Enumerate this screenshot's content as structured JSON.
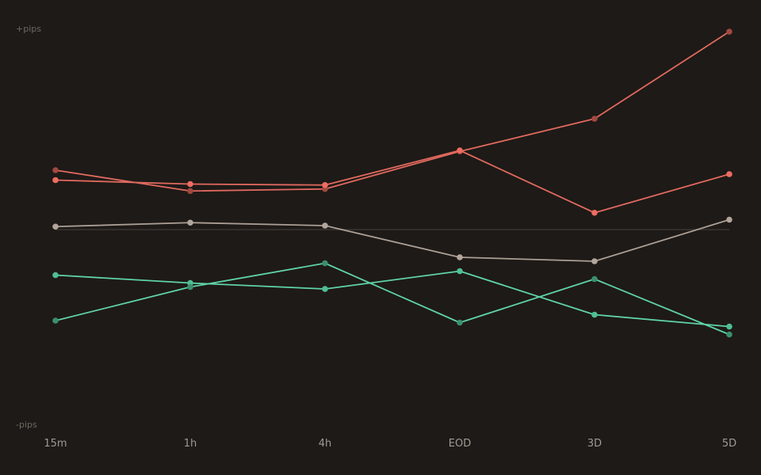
{
  "chart_data": {
    "type": "line",
    "title": "",
    "xlabel": "",
    "ylabel": "",
    "y_top_label": "+pips",
    "y_bottom_label": "-pips",
    "categories": [
      "15m",
      "1h",
      "4h",
      "EOD",
      "3D",
      "5D"
    ],
    "ylim": [
      -100,
      100
    ],
    "baseline": 0,
    "grid": false,
    "legend": "none",
    "series": [
      {
        "color": "#e0695f",
        "marker_color": "#a24840",
        "values": [
          30,
          19.5,
          20.5,
          39.5,
          56,
          100
        ]
      },
      {
        "color": "#e0695f",
        "marker_color": "#ee6c62",
        "values": [
          25,
          23,
          22.5,
          40,
          8.5,
          28
        ]
      },
      {
        "color": "#ab9f95",
        "marker_color": "#b2a69c",
        "values": [
          1.5,
          3.5,
          2,
          -14,
          -16,
          5
        ]
      },
      {
        "color": "#5fd3a7",
        "marker_color": "#4fbf92",
        "values": [
          -23,
          -27,
          -30,
          -21,
          -43,
          -49
        ]
      },
      {
        "color": "#5fd3a7",
        "marker_color": "#3b8f6c",
        "values": [
          -46,
          -29,
          -17,
          -47,
          -25,
          -53
        ]
      }
    ]
  }
}
